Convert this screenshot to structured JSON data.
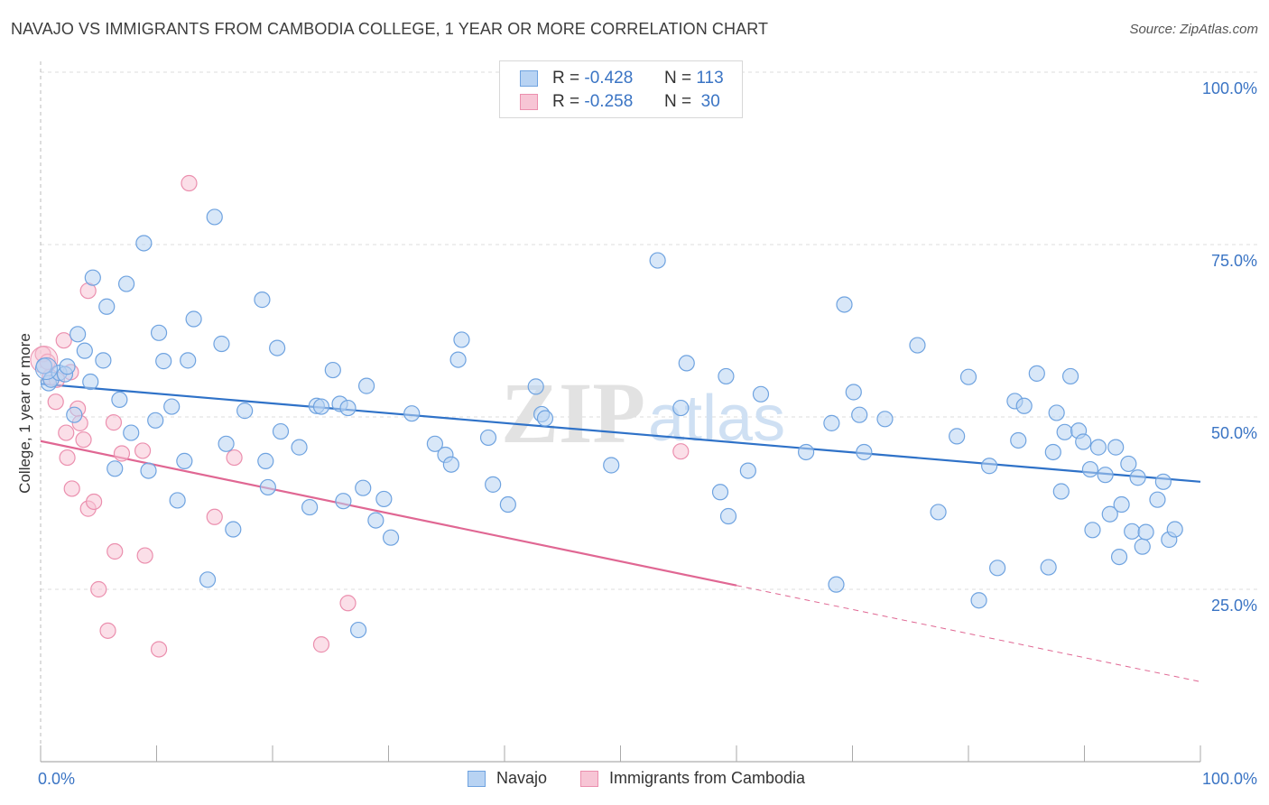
{
  "title": "NAVAJO VS IMMIGRANTS FROM CAMBODIA COLLEGE, 1 YEAR OR MORE CORRELATION CHART",
  "source": "Source: ZipAtlas.com",
  "legend": {
    "row1": {
      "r_label": "R =",
      "r_value": "-0.428",
      "n_label": "N =",
      "n_value": "113"
    },
    "row2": {
      "r_label": "R =",
      "r_value": "-0.258",
      "n_label": "N =",
      "n_value": "30"
    }
  },
  "bottom_legend": [
    "Navajo",
    "Immigrants from Cambodia"
  ],
  "colors": {
    "navajo": "#6fa3e0",
    "navajo_fill": "#b8d3f3",
    "navajo_line": "#2f72c8",
    "cambodia": "#eb8fae",
    "cambodia_fill": "#f7c5d5",
    "cambodia_line": "#e06793",
    "tick_text": "#3a74c4"
  },
  "chart_data": {
    "type": "scatter",
    "title": "NAVAJO VS IMMIGRANTS FROM CAMBODIA COLLEGE, 1 YEAR OR MORE CORRELATION CHART",
    "xlabel": "",
    "ylabel": "College, 1 year or more",
    "xlim": [
      0,
      100
    ],
    "ylim": [
      0,
      100
    ],
    "x_tick_labels": [
      "0.0%",
      "100.0%"
    ],
    "y_tick_labels": [
      "100.0%",
      "75.0%",
      "50.0%",
      "25.0%"
    ],
    "y_ticks": [
      100,
      75,
      50,
      25
    ],
    "grid": true,
    "watermark": "ZIPatlas",
    "series": [
      {
        "name": "Navajo",
        "r": -0.428,
        "n": 113,
        "trend": {
          "x": [
            0,
            100
          ],
          "y": [
            54.8,
            40.6
          ],
          "dashed_from": null
        },
        "points": [
          [
            0.3,
            57.4
          ],
          [
            0.7,
            54.9
          ],
          [
            0.9,
            55.4
          ],
          [
            1.6,
            56.4
          ],
          [
            2.1,
            56.2
          ],
          [
            2.3,
            57.3
          ],
          [
            2.9,
            50.3
          ],
          [
            3.2,
            62.0
          ],
          [
            3.8,
            59.6
          ],
          [
            4.3,
            55.1
          ],
          [
            4.5,
            70.2
          ],
          [
            5.4,
            58.2
          ],
          [
            5.7,
            66.0
          ],
          [
            6.4,
            42.5
          ],
          [
            6.8,
            52.5
          ],
          [
            7.4,
            69.3
          ],
          [
            7.8,
            47.7
          ],
          [
            8.9,
            75.2
          ],
          [
            9.3,
            42.2
          ],
          [
            9.9,
            49.5
          ],
          [
            10.2,
            62.2
          ],
          [
            10.6,
            58.1
          ],
          [
            11.3,
            51.5
          ],
          [
            11.8,
            37.9
          ],
          [
            12.4,
            43.6
          ],
          [
            12.7,
            58.2
          ],
          [
            13.2,
            64.2
          ],
          [
            14.4,
            26.4
          ],
          [
            15.0,
            79.0
          ],
          [
            15.6,
            60.6
          ],
          [
            16.0,
            46.1
          ],
          [
            16.6,
            33.7
          ],
          [
            17.6,
            50.9
          ],
          [
            19.1,
            67.0
          ],
          [
            19.4,
            43.6
          ],
          [
            19.6,
            39.8
          ],
          [
            20.4,
            60.0
          ],
          [
            20.7,
            47.9
          ],
          [
            22.3,
            45.6
          ],
          [
            23.2,
            36.9
          ],
          [
            23.8,
            51.6
          ],
          [
            24.2,
            51.5
          ],
          [
            25.2,
            56.8
          ],
          [
            25.8,
            51.9
          ],
          [
            26.1,
            37.8
          ],
          [
            26.5,
            51.3
          ],
          [
            27.4,
            19.1
          ],
          [
            27.8,
            39.7
          ],
          [
            28.1,
            54.5
          ],
          [
            28.9,
            35.0
          ],
          [
            29.6,
            38.1
          ],
          [
            30.2,
            32.5
          ],
          [
            32.0,
            50.5
          ],
          [
            34.0,
            46.1
          ],
          [
            34.9,
            44.5
          ],
          [
            35.4,
            43.1
          ],
          [
            36.0,
            58.3
          ],
          [
            36.3,
            61.2
          ],
          [
            38.6,
            47.0
          ],
          [
            39.0,
            40.2
          ],
          [
            40.3,
            37.3
          ],
          [
            42.7,
            54.4
          ],
          [
            43.2,
            50.4
          ],
          [
            43.5,
            49.8
          ],
          [
            49.2,
            43.0
          ],
          [
            53.2,
            72.7
          ],
          [
            55.2,
            51.3
          ],
          [
            55.7,
            57.8
          ],
          [
            58.6,
            39.1
          ],
          [
            59.1,
            55.9
          ],
          [
            59.3,
            35.6
          ],
          [
            61.0,
            42.2
          ],
          [
            62.1,
            53.3
          ],
          [
            66.0,
            44.9
          ],
          [
            68.2,
            49.1
          ],
          [
            68.6,
            25.7
          ],
          [
            69.3,
            66.3
          ],
          [
            70.1,
            53.6
          ],
          [
            70.6,
            50.3
          ],
          [
            71.0,
            44.9
          ],
          [
            72.8,
            49.7
          ],
          [
            75.6,
            60.4
          ],
          [
            77.4,
            36.2
          ],
          [
            79.0,
            47.2
          ],
          [
            80.0,
            55.8
          ],
          [
            80.9,
            23.4
          ],
          [
            81.8,
            42.9
          ],
          [
            82.5,
            28.1
          ],
          [
            84.0,
            52.3
          ],
          [
            84.3,
            46.6
          ],
          [
            84.8,
            51.6
          ],
          [
            85.9,
            56.3
          ],
          [
            86.9,
            28.2
          ],
          [
            87.3,
            44.9
          ],
          [
            87.6,
            50.6
          ],
          [
            88.0,
            39.2
          ],
          [
            88.3,
            47.8
          ],
          [
            88.8,
            55.9
          ],
          [
            89.5,
            48.0
          ],
          [
            89.9,
            46.4
          ],
          [
            90.5,
            42.4
          ],
          [
            90.7,
            33.6
          ],
          [
            91.2,
            45.6
          ],
          [
            91.8,
            41.6
          ],
          [
            92.2,
            35.9
          ],
          [
            92.7,
            45.6
          ],
          [
            93.0,
            29.7
          ],
          [
            93.2,
            37.3
          ],
          [
            93.8,
            43.2
          ],
          [
            94.1,
            33.4
          ],
          [
            94.6,
            41.2
          ],
          [
            95.0,
            31.2
          ],
          [
            95.3,
            33.3
          ],
          [
            96.3,
            38.0
          ],
          [
            96.8,
            40.6
          ],
          [
            97.3,
            32.2
          ],
          [
            97.8,
            33.7
          ]
        ]
      },
      {
        "name": "Immigrants from Cambodia",
        "r": -0.258,
        "n": 30,
        "trend": {
          "x": [
            0,
            100
          ],
          "y": [
            46.5,
            11.6
          ],
          "solid_until_x": 60
        },
        "points": [
          [
            0.2,
            59.1
          ],
          [
            0.8,
            55.8
          ],
          [
            1.3,
            52.2
          ],
          [
            1.4,
            55.4
          ],
          [
            2.0,
            61.1
          ],
          [
            2.2,
            47.7
          ],
          [
            2.3,
            44.1
          ],
          [
            2.6,
            56.5
          ],
          [
            2.7,
            39.6
          ],
          [
            3.2,
            51.2
          ],
          [
            3.4,
            49.1
          ],
          [
            3.7,
            46.7
          ],
          [
            4.1,
            68.3
          ],
          [
            4.1,
            36.7
          ],
          [
            4.6,
            37.7
          ],
          [
            5.0,
            25.0
          ],
          [
            5.8,
            19.0
          ],
          [
            6.3,
            49.2
          ],
          [
            6.4,
            30.5
          ],
          [
            7.0,
            44.7
          ],
          [
            8.8,
            45.1
          ],
          [
            9.0,
            29.9
          ],
          [
            10.2,
            16.3
          ],
          [
            12.8,
            83.9
          ],
          [
            15.0,
            35.5
          ],
          [
            16.7,
            44.1
          ],
          [
            24.2,
            17.0
          ],
          [
            26.5,
            23.0
          ],
          [
            55.2,
            45.0
          ],
          [
            0.6,
            58.0
          ]
        ]
      }
    ]
  }
}
